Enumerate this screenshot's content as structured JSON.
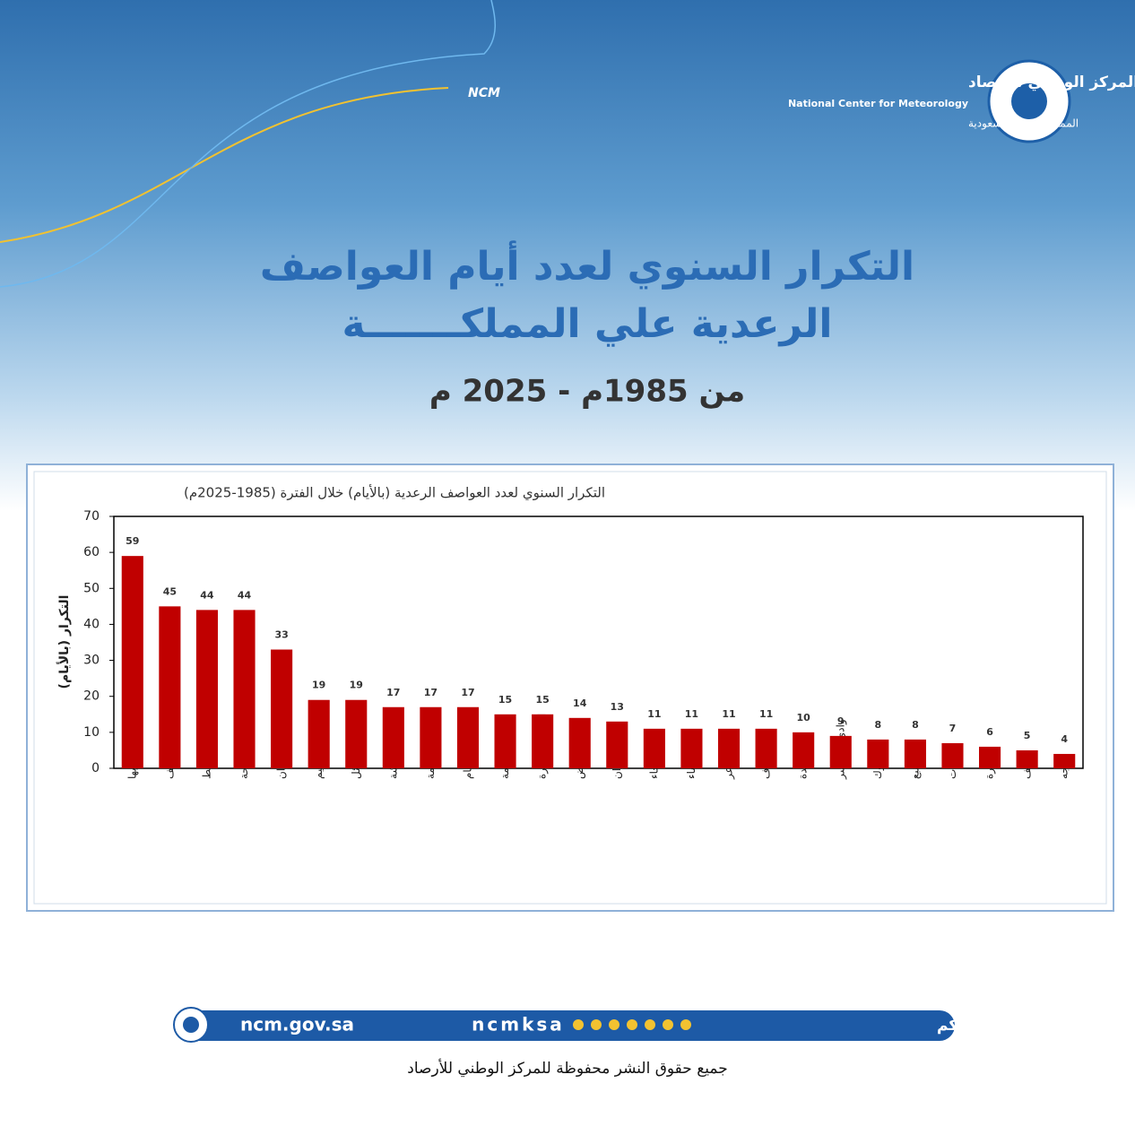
{
  "header": {
    "org_ar": "المركز الوطني للأرصاد",
    "org_en": "National Center for Meteorology",
    "country_ar": "المملكة العربية السعودية",
    "badge": "NCM",
    "title_line1": "التكرار السنوي لعدد أيام العواصف",
    "title_line2": "الرعدية علي المملكـــــــة",
    "period": "من 1985م - 2025 م"
  },
  "chart_data": {
    "type": "bar",
    "title": "التكرار السنوي لعدد العواصف الرعدية (بالأيام) خلال الفترة (1985-2025م)",
    "y_label": "التكرار (بالأيام)",
    "categories": [
      "أبها",
      "الطائف",
      "خميس مشيط",
      "الباحة",
      "جازان",
      "القصيم",
      "حائل",
      "بيشة",
      "مكة المكرمة",
      "الدمام",
      "القيصومة",
      "المدينة المنورة",
      "الرياض",
      "نجران",
      "رفحاء",
      "الاحساء",
      "عرعر",
      "الجوف",
      "جدة",
      "وادي الدواسر",
      "تبوك",
      "ينبع",
      "القريات",
      "شرورة",
      "طريف",
      "الوجه"
    ],
    "values": [
      59,
      45,
      44,
      44,
      33,
      19,
      19,
      17,
      17,
      17,
      15,
      15,
      14,
      13,
      11,
      11,
      11,
      11,
      10,
      9,
      8,
      8,
      7,
      6,
      5,
      4
    ],
    "color": "#c00000",
    "ylim": [
      0,
      70
    ],
    "yticks": [
      0,
      10,
      20,
      30,
      40,
      50,
      60,
      70
    ],
    "grid": false
  },
  "footer": {
    "website": "ncm.gov.sa",
    "handle": "ncmksa",
    "hashtag": "#نحيطكم_بأجوائكم",
    "copyright": "جميع حقوق النشر محفوظة للمركز الوطني للأرصاد"
  }
}
